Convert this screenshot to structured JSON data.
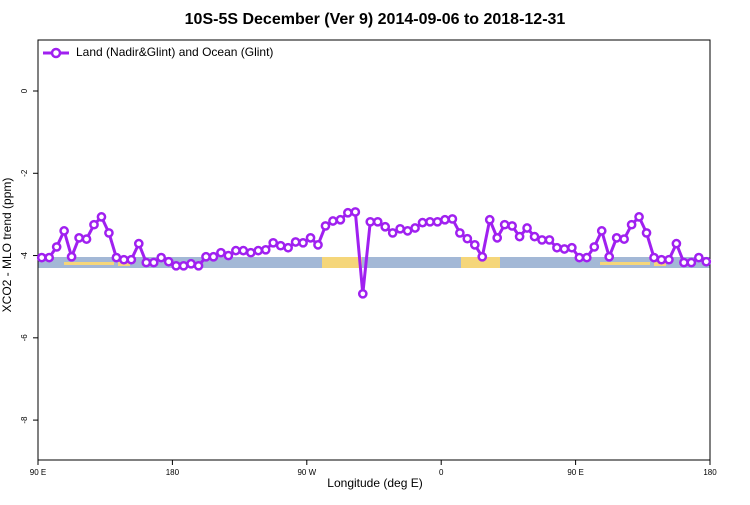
{
  "chart_data": {
    "type": "line",
    "title": "10S-5S December (Ver 9)   2014-09-06 to 2018-12-31",
    "x_label": "Longitude (deg E)",
    "y_label": "XCO2 - MLO trend (ppm)",
    "x": [
      92.5,
      97.5,
      102.5,
      107.5,
      112.5,
      117.5,
      122.5,
      127.5,
      132.5,
      137.5,
      142.5,
      147.5,
      152.5,
      157.5,
      162.5,
      167.5,
      172.5,
      177.5,
      182.5,
      187.5,
      192.5,
      197.5,
      202.5,
      207.5,
      212.5,
      217.5,
      222.5,
      227.5,
      232.5,
      237.5,
      242.5,
      247.5,
      252.5,
      257.5,
      262.5,
      267.5,
      272.5,
      277.5,
      282.5,
      287.5,
      292.5,
      297.5,
      302.5,
      307.5,
      312.5,
      317.5,
      322.5,
      327.5,
      332.5,
      337.5,
      342.5,
      347.5,
      352.5,
      357.5,
      362.5,
      367.5,
      372.5,
      377.5,
      382.5,
      387.5,
      392.5,
      397.5,
      402.5,
      407.5,
      412.5,
      417.5,
      422.5,
      427.5,
      432.5,
      437.5,
      442.5,
      447.5,
      452.5,
      457.5,
      462.5,
      467.5,
      472.5,
      477.5,
      482.5,
      487.5,
      492.5,
      497.5,
      502.5,
      507.5,
      512.5,
      517.5,
      522.5,
      527.5,
      532.5,
      537.5
    ],
    "series": [
      {
        "name": "Land (Nadir&Glint) and Ocean (Glint)",
        "color": "#a020f0",
        "values": [
          -4.05,
          -4.05,
          -3.79,
          -3.4,
          -4.03,
          -3.57,
          -3.6,
          -3.25,
          -3.06,
          -3.45,
          -4.05,
          -4.1,
          -4.1,
          -3.71,
          -4.17,
          -4.17,
          -4.05,
          -4.15,
          -4.25,
          -4.25,
          -4.2,
          -4.25,
          -4.03,
          -4.03,
          -3.93,
          -4.0,
          -3.88,
          -3.88,
          -3.93,
          -3.88,
          -3.86,
          -3.69,
          -3.76,
          -3.81,
          -3.67,
          -3.69,
          -3.57,
          -3.74,
          -3.28,
          -3.16,
          -3.13,
          -2.96,
          -2.94,
          -4.93,
          -3.18,
          -3.18,
          -3.3,
          -3.45,
          -3.35,
          -3.4,
          -3.33,
          -3.2,
          -3.18,
          -3.18,
          -3.13,
          -3.11,
          -3.45,
          -3.59,
          -3.74,
          -4.03,
          -3.13,
          -3.57,
          -3.25,
          -3.28,
          -3.54,
          -3.33,
          -3.54,
          -3.62,
          -3.62,
          -3.81,
          -3.84,
          -3.81,
          -4.05,
          -4.05,
          -3.79,
          -3.4,
          -4.03,
          -3.57,
          -3.6,
          -3.25,
          -3.06,
          -3.45,
          -4.05,
          -4.1,
          -4.1,
          -3.71,
          -4.17,
          -4.17,
          -4.05,
          -4.15
        ]
      }
    ],
    "xlim": [
      90,
      540
    ],
    "xticks": [
      {
        "value": 90,
        "label": "90 E"
      },
      180,
      {
        "value": 270,
        "label": "90 W"
      },
      {
        "value": 360,
        "label": "0"
      },
      {
        "value": 450,
        "label": "90 E"
      },
      {
        "value": 540,
        "label": "180"
      }
    ],
    "ylim": [
      -8.97,
      1.24
    ],
    "yticks": [
      0,
      -2,
      -4,
      -6,
      -8
    ],
    "legend": "top-left"
  }
}
